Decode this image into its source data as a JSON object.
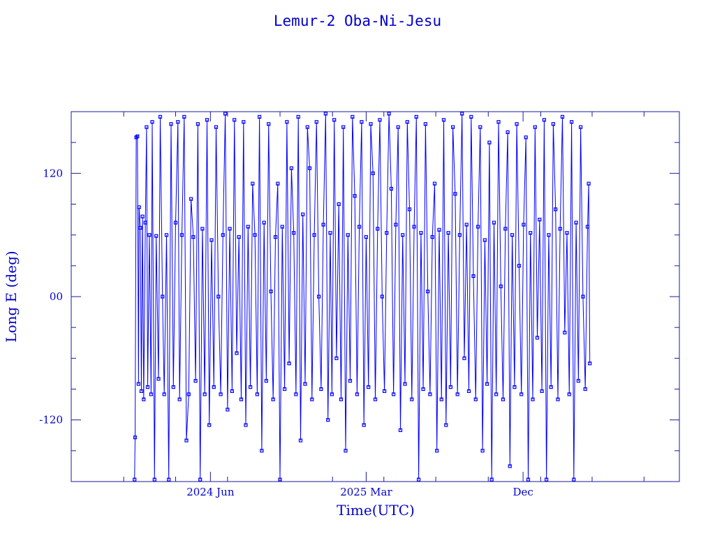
{
  "chart_data": {
    "type": "scatter",
    "title": "Lemur-2 Oba-Ni-Jesu",
    "xlabel": "Time(UTC)",
    "ylabel": "Long E (deg)",
    "x_type": "date",
    "xlim": [
      "2023-10-01",
      "2026-09-01"
    ],
    "ylim": [
      -180,
      180
    ],
    "x_ticks": [
      {
        "date": "2024-06-01",
        "label": "2024 Jun"
      },
      {
        "date": "2025-03-01",
        "label": "2025 Mar"
      },
      {
        "date": "2025-12-01",
        "label": "Dec"
      }
    ],
    "y_ticks": [
      {
        "value": 120,
        "label": "120"
      },
      {
        "value": 0,
        "label": "00"
      },
      {
        "value": -120,
        "label": "-120"
      }
    ],
    "grid": false,
    "color": "#0000ff",
    "marker": "open-square",
    "series": [
      {
        "values": [
          [
            "2024-01-20",
            -178
          ],
          [
            "2024-01-21",
            -137
          ],
          [
            "2024-01-23",
            155
          ],
          [
            "2024-01-25",
            156
          ],
          [
            "2024-01-27",
            -85
          ],
          [
            "2024-01-28",
            87
          ],
          [
            "2024-01-30",
            67
          ],
          [
            "2024-02-01",
            -92
          ],
          [
            "2024-02-03",
            78
          ],
          [
            "2024-02-05",
            -100
          ],
          [
            "2024-02-08",
            72
          ],
          [
            "2024-02-10",
            165
          ],
          [
            "2024-02-12",
            -88
          ],
          [
            "2024-02-15",
            60
          ],
          [
            "2024-02-18",
            -95
          ],
          [
            "2024-02-20",
            170
          ],
          [
            "2024-02-24",
            -178
          ],
          [
            "2024-02-27",
            59
          ],
          [
            "2024-03-02",
            -80
          ],
          [
            "2024-03-05",
            175
          ],
          [
            "2024-03-09",
            0
          ],
          [
            "2024-03-12",
            -95
          ],
          [
            "2024-03-16",
            60
          ],
          [
            "2024-03-20",
            -178
          ],
          [
            "2024-03-24",
            168
          ],
          [
            "2024-03-28",
            -88
          ],
          [
            "2024-04-01",
            72
          ],
          [
            "2024-04-05",
            170
          ],
          [
            "2024-04-08",
            -100
          ],
          [
            "2024-04-12",
            60
          ],
          [
            "2024-04-16",
            175
          ],
          [
            "2024-04-20",
            -140
          ],
          [
            "2024-04-24",
            -95
          ],
          [
            "2024-04-28",
            95
          ],
          [
            "2024-05-02",
            58
          ],
          [
            "2024-05-06",
            -82
          ],
          [
            "2024-05-10",
            168
          ],
          [
            "2024-05-14",
            -178
          ],
          [
            "2024-05-18",
            66
          ],
          [
            "2024-05-22",
            -95
          ],
          [
            "2024-05-26",
            172
          ],
          [
            "2024-05-30",
            -125
          ],
          [
            "2024-06-03",
            55
          ],
          [
            "2024-06-07",
            -88
          ],
          [
            "2024-06-11",
            165
          ],
          [
            "2024-06-15",
            0
          ],
          [
            "2024-06-19",
            -95
          ],
          [
            "2024-06-23",
            60
          ],
          [
            "2024-06-27",
            178
          ],
          [
            "2024-07-01",
            -110
          ],
          [
            "2024-07-05",
            66
          ],
          [
            "2024-07-09",
            -92
          ],
          [
            "2024-07-13",
            172
          ],
          [
            "2024-07-17",
            -55
          ],
          [
            "2024-07-21",
            58
          ],
          [
            "2024-07-25",
            -100
          ],
          [
            "2024-07-29",
            170
          ],
          [
            "2024-08-02",
            -125
          ],
          [
            "2024-08-06",
            68
          ],
          [
            "2024-08-10",
            -88
          ],
          [
            "2024-08-14",
            110
          ],
          [
            "2024-08-18",
            60
          ],
          [
            "2024-08-22",
            -95
          ],
          [
            "2024-08-26",
            175
          ],
          [
            "2024-08-30",
            -150
          ],
          [
            "2024-09-03",
            72
          ],
          [
            "2024-09-07",
            -82
          ],
          [
            "2024-09-11",
            168
          ],
          [
            "2024-09-15",
            5
          ],
          [
            "2024-09-19",
            -100
          ],
          [
            "2024-09-23",
            58
          ],
          [
            "2024-09-27",
            110
          ],
          [
            "2024-10-01",
            -178
          ],
          [
            "2024-10-05",
            68
          ],
          [
            "2024-10-09",
            -90
          ],
          [
            "2024-10-13",
            170
          ],
          [
            "2024-10-17",
            -65
          ],
          [
            "2024-10-21",
            125
          ],
          [
            "2024-10-25",
            62
          ],
          [
            "2024-10-29",
            -95
          ],
          [
            "2024-11-02",
            175
          ],
          [
            "2024-11-06",
            -140
          ],
          [
            "2024-11-10",
            80
          ],
          [
            "2024-11-14",
            -85
          ],
          [
            "2024-11-18",
            165
          ],
          [
            "2024-11-22",
            125
          ],
          [
            "2024-11-26",
            -100
          ],
          [
            "2024-11-30",
            60
          ],
          [
            "2024-12-04",
            170
          ],
          [
            "2024-12-08",
            0
          ],
          [
            "2024-12-12",
            -90
          ],
          [
            "2024-12-16",
            70
          ],
          [
            "2024-12-20",
            178
          ],
          [
            "2024-12-24",
            -120
          ],
          [
            "2024-12-28",
            62
          ],
          [
            "2024-12-31",
            -95
          ],
          [
            "2025-01-04",
            172
          ],
          [
            "2025-01-08",
            -60
          ],
          [
            "2025-01-12",
            90
          ],
          [
            "2025-01-16",
            -100
          ],
          [
            "2025-01-20",
            165
          ],
          [
            "2025-01-24",
            -150
          ],
          [
            "2025-01-28",
            60
          ],
          [
            "2025-02-01",
            -82
          ],
          [
            "2025-02-05",
            175
          ],
          [
            "2025-02-09",
            98
          ],
          [
            "2025-02-13",
            -95
          ],
          [
            "2025-02-17",
            68
          ],
          [
            "2025-02-21",
            170
          ],
          [
            "2025-02-25",
            -125
          ],
          [
            "2025-03-01",
            58
          ],
          [
            "2025-03-05",
            -88
          ],
          [
            "2025-03-09",
            168
          ],
          [
            "2025-03-13",
            120
          ],
          [
            "2025-03-17",
            -100
          ],
          [
            "2025-03-21",
            66
          ],
          [
            "2025-03-25",
            172
          ],
          [
            "2025-03-29",
            0
          ],
          [
            "2025-04-02",
            -92
          ],
          [
            "2025-04-06",
            62
          ],
          [
            "2025-04-10",
            178
          ],
          [
            "2025-04-14",
            105
          ],
          [
            "2025-04-18",
            -95
          ],
          [
            "2025-04-22",
            70
          ],
          [
            "2025-04-26",
            165
          ],
          [
            "2025-04-30",
            -130
          ],
          [
            "2025-05-04",
            60
          ],
          [
            "2025-05-08",
            -85
          ],
          [
            "2025-05-12",
            170
          ],
          [
            "2025-05-16",
            85
          ],
          [
            "2025-05-20",
            -100
          ],
          [
            "2025-05-24",
            68
          ],
          [
            "2025-05-28",
            175
          ],
          [
            "2025-06-01",
            -178
          ],
          [
            "2025-06-05",
            62
          ],
          [
            "2025-06-09",
            -90
          ],
          [
            "2025-06-13",
            168
          ],
          [
            "2025-06-17",
            5
          ],
          [
            "2025-06-21",
            -95
          ],
          [
            "2025-06-25",
            58
          ],
          [
            "2025-06-29",
            110
          ],
          [
            "2025-07-03",
            -150
          ],
          [
            "2025-07-07",
            65
          ],
          [
            "2025-07-11",
            -100
          ],
          [
            "2025-07-15",
            172
          ],
          [
            "2025-07-19",
            -125
          ],
          [
            "2025-07-23",
            62
          ],
          [
            "2025-07-27",
            -88
          ],
          [
            "2025-07-31",
            165
          ],
          [
            "2025-08-04",
            100
          ],
          [
            "2025-08-08",
            -95
          ],
          [
            "2025-08-12",
            60
          ],
          [
            "2025-08-16",
            178
          ],
          [
            "2025-08-20",
            -60
          ],
          [
            "2025-08-24",
            70
          ],
          [
            "2025-08-28",
            -92
          ],
          [
            "2025-09-01",
            175
          ],
          [
            "2025-09-05",
            20
          ],
          [
            "2025-09-09",
            -100
          ],
          [
            "2025-09-13",
            68
          ],
          [
            "2025-09-17",
            165
          ],
          [
            "2025-09-21",
            -150
          ],
          [
            "2025-09-25",
            55
          ],
          [
            "2025-09-29",
            -85
          ],
          [
            "2025-10-03",
            150
          ],
          [
            "2025-10-07",
            -178
          ],
          [
            "2025-10-11",
            72
          ],
          [
            "2025-10-15",
            -95
          ],
          [
            "2025-10-19",
            170
          ],
          [
            "2025-10-23",
            10
          ],
          [
            "2025-10-27",
            -100
          ],
          [
            "2025-10-31",
            66
          ],
          [
            "2025-11-04",
            160
          ],
          [
            "2025-11-08",
            -165
          ],
          [
            "2025-11-12",
            60
          ],
          [
            "2025-11-16",
            -88
          ],
          [
            "2025-11-20",
            168
          ],
          [
            "2025-11-24",
            30
          ],
          [
            "2025-11-28",
            -95
          ],
          [
            "2025-12-02",
            70
          ],
          [
            "2025-12-06",
            155
          ],
          [
            "2025-12-10",
            -178
          ],
          [
            "2025-12-14",
            62
          ],
          [
            "2025-12-18",
            -100
          ],
          [
            "2025-12-22",
            165
          ],
          [
            "2025-12-26",
            -40
          ],
          [
            "2025-12-30",
            75
          ],
          [
            "2026-01-03",
            -92
          ],
          [
            "2026-01-07",
            172
          ],
          [
            "2026-01-11",
            -178
          ],
          [
            "2026-01-15",
            60
          ],
          [
            "2026-01-19",
            -88
          ],
          [
            "2026-01-23",
            168
          ],
          [
            "2026-01-27",
            85
          ],
          [
            "2026-01-31",
            -100
          ],
          [
            "2026-02-04",
            66
          ],
          [
            "2026-02-08",
            175
          ],
          [
            "2026-02-12",
            -35
          ],
          [
            "2026-02-16",
            62
          ],
          [
            "2026-02-20",
            -95
          ],
          [
            "2026-02-24",
            170
          ],
          [
            "2026-02-28",
            -178
          ],
          [
            "2026-03-04",
            72
          ],
          [
            "2026-03-08",
            -82
          ],
          [
            "2026-03-12",
            165
          ],
          [
            "2026-03-16",
            0
          ],
          [
            "2026-03-20",
            -90
          ],
          [
            "2026-03-24",
            68
          ],
          [
            "2026-03-26",
            110
          ],
          [
            "2026-03-28",
            -65
          ]
        ]
      }
    ]
  }
}
